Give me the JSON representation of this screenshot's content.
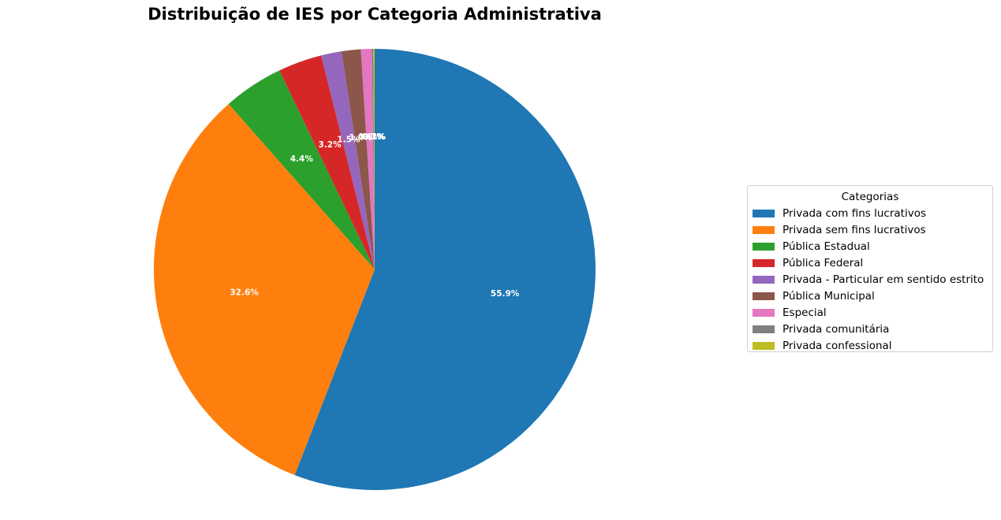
{
  "chart_data": {
    "type": "pie",
    "title": "Distribuição de IES por Categoria Administrativa",
    "legend_title": "Categorias",
    "legend_position": "right",
    "start_angle_deg": 90,
    "direction": "clockwise",
    "slices": [
      {
        "label": "Privada com fins lucrativos",
        "value": 55.9,
        "label_text": "55.9%",
        "color": "#1f77b4"
      },
      {
        "label": "Privada sem fins lucrativos",
        "value": 32.6,
        "label_text": "32.6%",
        "color": "#ff7f0e"
      },
      {
        "label": "Pública Estadual",
        "value": 4.4,
        "label_text": "4.4%",
        "color": "#2ca02c"
      },
      {
        "label": "Pública Federal",
        "value": 3.2,
        "label_text": "3.2%",
        "color": "#d62728"
      },
      {
        "label": "Privada - Particular em sentido estrito",
        "value": 1.5,
        "label_text": "1.5%",
        "color": "#9467bd"
      },
      {
        "label": "Pública Municipal",
        "value": 1.4,
        "label_text": "1.4%",
        "color": "#8c564b"
      },
      {
        "label": "Especial",
        "value": 0.8,
        "label_text": "0.8%",
        "color": "#e377c2"
      },
      {
        "label": "Privada comunitária",
        "value": 0.1,
        "label_text": "0.1%",
        "color": "#7f7f7f"
      },
      {
        "label": "Privada confessional",
        "value": 0.1,
        "label_text": "0.1%",
        "color": "#bcbd22"
      }
    ]
  }
}
